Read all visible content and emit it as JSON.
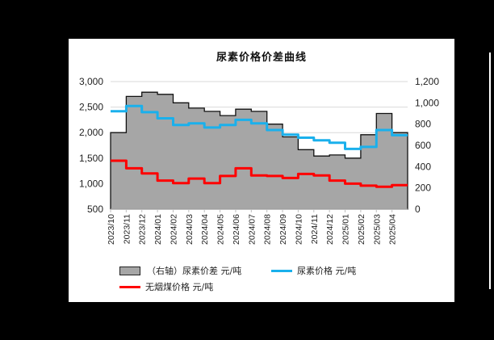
{
  "chart_data": {
    "type": "line",
    "title": "尿素价格价差曲线",
    "xlabel": "",
    "ylabel": "",
    "y2label": "",
    "ylim": [
      500,
      3000
    ],
    "y2lim": [
      0,
      1200
    ],
    "yticks": [
      "500",
      "1,000",
      "1,500",
      "2,000",
      "2,500",
      "3,000"
    ],
    "y2ticks": [
      "0",
      "200",
      "400",
      "600",
      "800",
      "1,000",
      "1,200"
    ],
    "grid": true,
    "legend_position": "bottom",
    "categories": [
      "2023/10",
      "2023/11",
      "2023/12",
      "2024/01",
      "2024/02",
      "2024/03",
      "2024/04",
      "2024/05",
      "2024/06",
      "2024/07",
      "2024/08",
      "2024/09",
      "2024/10",
      "2024/11",
      "2024/12",
      "2025/01",
      "2025/02",
      "2025/03",
      "2025/04"
    ],
    "series": [
      {
        "name": "（右轴）尿素价差 元/吨",
        "type": "area",
        "axis": "right",
        "color": "#a6a6a6",
        "values": [
          720,
          1060,
          1100,
          1080,
          1000,
          950,
          920,
          880,
          940,
          920,
          800,
          680,
          560,
          500,
          510,
          480,
          700,
          900,
          720
        ]
      },
      {
        "name": "尿素价格 元/吨",
        "type": "line",
        "axis": "left",
        "color": "#1ab0ec",
        "values": [
          2420,
          2520,
          2400,
          2280,
          2150,
          2180,
          2100,
          2150,
          2250,
          2180,
          2050,
          1960,
          1900,
          1850,
          1800,
          1680,
          1720,
          2050,
          1950
        ]
      },
      {
        "name": "无烟煤价格 元/吨",
        "type": "line",
        "axis": "left",
        "color": "#ff0000",
        "values": [
          1450,
          1300,
          1200,
          1060,
          1010,
          1100,
          1010,
          1150,
          1300,
          1160,
          1150,
          1110,
          1190,
          1160,
          1060,
          1000,
          960,
          940,
          970
        ]
      }
    ]
  }
}
